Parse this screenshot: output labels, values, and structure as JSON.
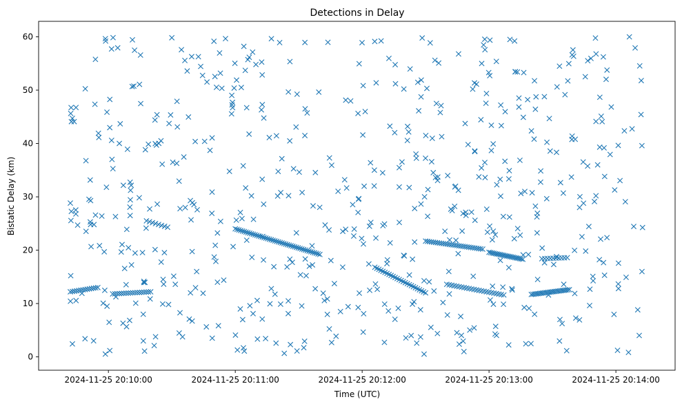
{
  "chart_data": {
    "type": "scatter",
    "title": "Detections in Delay",
    "xlabel": "Time (UTC)",
    "ylabel": "Bistatic Delay (km)",
    "x_ticks": [
      "2024-11-25 20:10:00",
      "2024-11-25 20:11:00",
      "2024-11-25 20:12:00",
      "2024-11-25 20:13:00",
      "2024-11-25 20:14:00"
    ],
    "y_ticks": [
      "0",
      "10",
      "20",
      "30",
      "40",
      "50",
      "60"
    ],
    "xlim": [
      "2024-11-25 20:09:27",
      "2024-11-25 20:14:28"
    ],
    "ylim": [
      -2.5,
      62.9
    ],
    "grid": false,
    "marker": "x",
    "color": "#1f77b4",
    "tracks": [
      {
        "t_start": "2024-11-25 20:09:42",
        "t_end": "2024-11-25 20:09:55",
        "y_start": 12.2,
        "y_end": 13.0,
        "n": 14
      },
      {
        "t_start": "2024-11-25 20:10:02",
        "t_end": "2024-11-25 20:10:20",
        "y_start": 11.8,
        "y_end": 12.2,
        "n": 18
      },
      {
        "t_start": "2024-11-25 20:10:18",
        "t_end": "2024-11-25 20:10:28",
        "y_start": 25.5,
        "y_end": 24.3,
        "n": 8
      },
      {
        "t_start": "2024-11-25 20:11:00",
        "t_end": "2024-11-25 20:11:40",
        "y_start": 24.0,
        "y_end": 19.2,
        "n": 48
      },
      {
        "t_start": "2024-11-25 20:12:06",
        "t_end": "2024-11-25 20:12:30",
        "y_start": 16.8,
        "y_end": 12.0,
        "n": 26
      },
      {
        "t_start": "2024-11-25 20:12:30",
        "t_end": "2024-11-25 20:12:57",
        "y_start": 21.7,
        "y_end": 20.2,
        "n": 30
      },
      {
        "t_start": "2024-11-25 20:12:40",
        "t_end": "2024-11-25 20:13:07",
        "y_start": 13.6,
        "y_end": 11.6,
        "n": 24
      },
      {
        "t_start": "2024-11-25 20:13:00",
        "t_end": "2024-11-25 20:13:16",
        "y_start": 19.6,
        "y_end": 18.3,
        "n": 22
      },
      {
        "t_start": "2024-11-25 20:13:20",
        "t_end": "2024-11-25 20:13:38",
        "y_start": 11.7,
        "y_end": 12.6,
        "n": 24
      },
      {
        "t_start": "2024-11-25 20:13:25",
        "t_end": "2024-11-25 20:13:37",
        "y_start": 18.4,
        "y_end": 18.6,
        "n": 10
      }
    ],
    "background_clutter": {
      "count": 620,
      "t_range": [
        "2024-11-25 20:09:42",
        "2024-11-25 20:14:13"
      ],
      "y_range": [
        0.5,
        60.0
      ],
      "seed": 7
    }
  }
}
